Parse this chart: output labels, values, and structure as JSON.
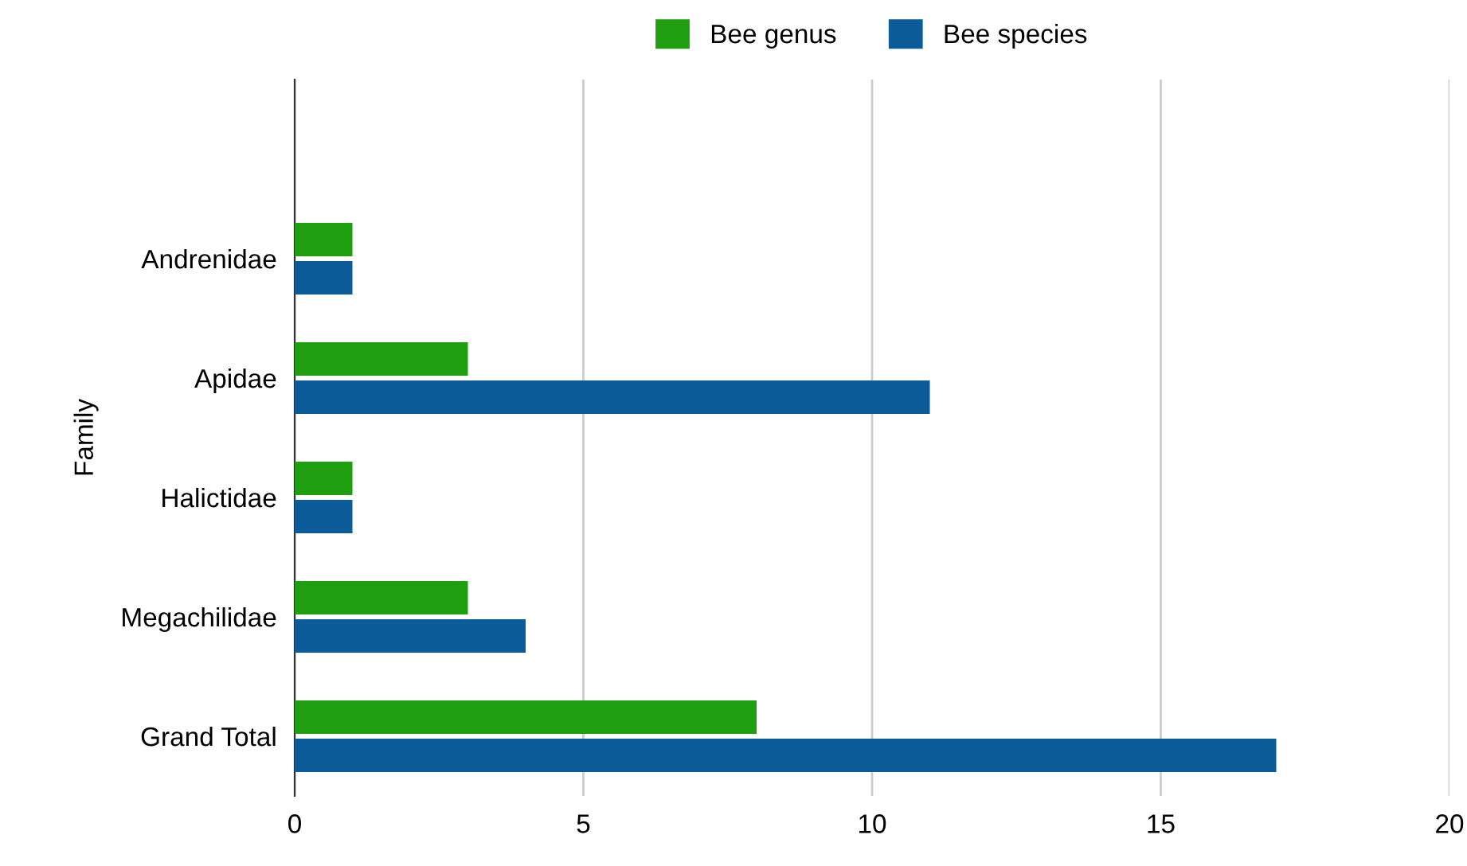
{
  "chart_data": {
    "type": "bar",
    "orientation": "horizontal",
    "ylabel": "Family",
    "categories": [
      null,
      "Andrenidae",
      "Apidae",
      "Halictidae",
      "Megachilidae",
      "Grand Total"
    ],
    "series": [
      {
        "name": "Bee genus",
        "color": "#1f9e0f",
        "values": [
          null,
          1,
          3,
          1,
          3,
          8
        ]
      },
      {
        "name": "Bee species",
        "color": "#0b5c99",
        "values": [
          null,
          1,
          11,
          1,
          4,
          17
        ]
      }
    ],
    "xlim": [
      0,
      20
    ],
    "xticks": [
      0,
      5,
      10,
      15,
      20
    ],
    "grid": "x",
    "legend": "top"
  }
}
